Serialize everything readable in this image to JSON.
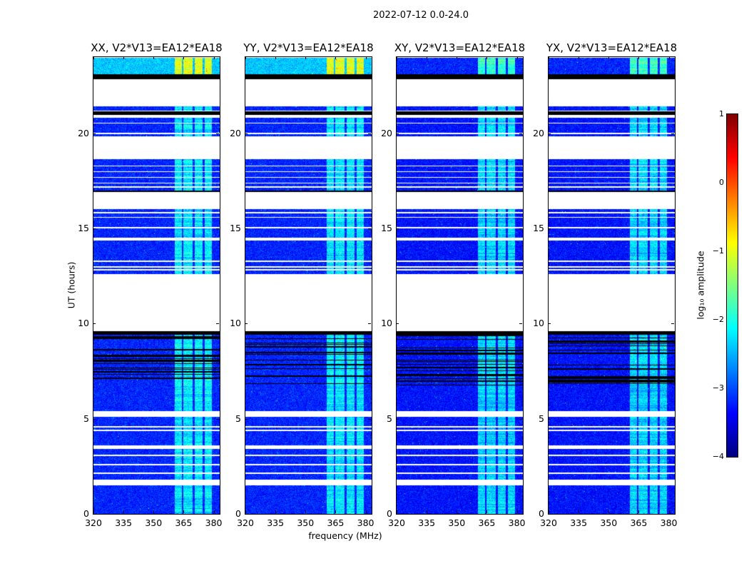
{
  "chart_data": {
    "type": "heatmap",
    "title": "2022-07-12 0.0-24.0",
    "xlabel": "frequency (MHz)",
    "ylabel": "UT (hours)",
    "xlim": [
      320,
      383
    ],
    "ylim": [
      0,
      24
    ],
    "xticks": [
      320,
      335,
      350,
      365,
      380
    ],
    "yticks": [
      0,
      5,
      10,
      15,
      20
    ],
    "colorbar": {
      "label": "log₁₀ amplitude",
      "range": [
        -4,
        1
      ],
      "ticks": [
        1,
        0,
        -1,
        -2,
        -3,
        -4
      ],
      "colormap": "jet"
    },
    "rfi_bands_mhz": [
      [
        360.5,
        364
      ],
      [
        365,
        369.5
      ],
      [
        370.5,
        374.5
      ],
      [
        375.5,
        379
      ]
    ],
    "panels": [
      {
        "title": "XX, V2*V13=EA12*EA18",
        "base_level": -3.2,
        "top_block_level": -2.4
      },
      {
        "title": "YY, V2*V13=EA12*EA18",
        "base_level": -3.2,
        "top_block_level": -2.4
      },
      {
        "title": "XY, V2*V13=EA12*EA18",
        "base_level": -3.3,
        "top_block_level": -3.2
      },
      {
        "title": "YX, V2*V13=EA12*EA18",
        "base_level": -3.3,
        "top_block_level": -3.2
      }
    ],
    "time_blocks": [
      {
        "start": 23.1,
        "end": 23.95,
        "kind": "top"
      },
      {
        "start": 22.85,
        "end": 23.1,
        "kind": "flagged"
      },
      {
        "start": 21.2,
        "end": 21.4,
        "kind": "data"
      },
      {
        "start": 20.95,
        "end": 21.15,
        "kind": "flagged"
      },
      {
        "start": 19.85,
        "end": 20.8,
        "kind": "data"
      },
      {
        "start": 17.0,
        "end": 18.65,
        "kind": "data"
      },
      {
        "start": 16.92,
        "end": 17.0,
        "kind": "flagged"
      },
      {
        "start": 14.5,
        "end": 16.0,
        "kind": "data"
      },
      {
        "start": 12.6,
        "end": 14.35,
        "kind": "data"
      },
      {
        "start": 9.4,
        "end": 9.6,
        "kind": "flagged"
      },
      {
        "start": 6.75,
        "end": 9.4,
        "kind": "striped"
      },
      {
        "start": 5.4,
        "end": 6.75,
        "kind": "data"
      },
      {
        "start": 3.6,
        "end": 5.1,
        "kind": "data"
      },
      {
        "start": 1.8,
        "end": 3.4,
        "kind": "data"
      },
      {
        "start": 0.0,
        "end": 1.5,
        "kind": "data"
      }
    ],
    "gap_lines_hours": [
      20.55,
      20.0,
      18.3,
      18.0,
      17.7,
      17.4,
      17.2,
      15.85,
      15.6,
      15.05,
      13.3,
      13.0,
      12.85,
      4.6,
      4.4,
      3.1,
      2.6,
      2.15,
      1.7
    ]
  }
}
